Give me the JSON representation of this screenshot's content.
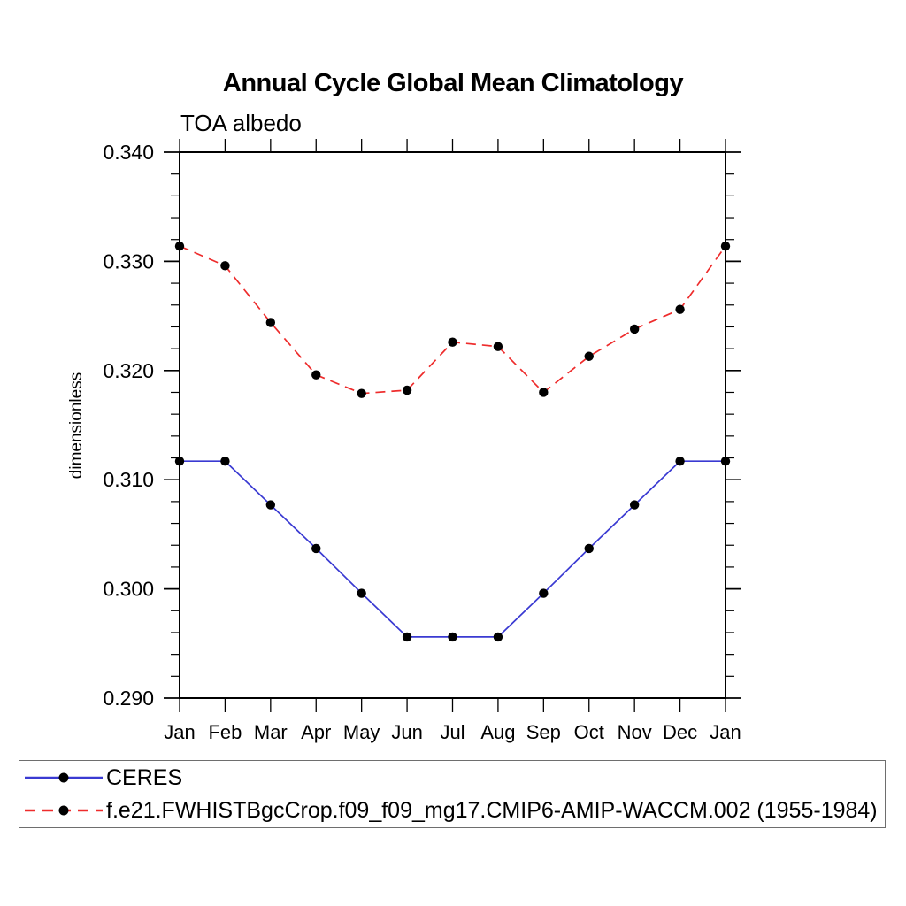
{
  "chart": {
    "title": "Annual Cycle Global Mean Climatology",
    "subtitle": "TOA albedo",
    "ylabel": "dimensionless"
  },
  "chart_data": {
    "type": "line",
    "title": "Annual Cycle Global Mean Climatology",
    "subtitle": "TOA albedo",
    "xlabel": "",
    "ylabel": "dimensionless",
    "x_tick_labels": [
      "Jan",
      "Feb",
      "Mar",
      "Apr",
      "May",
      "Jun",
      "Jul",
      "Aug",
      "Sep",
      "Oct",
      "Nov",
      "Dec",
      "Jan"
    ],
    "ylim": [
      0.29,
      0.34
    ],
    "y_major_step": 0.01,
    "y_minor_step": 0.002,
    "y_tick_decimals": 3,
    "grid": false,
    "frame": "box-with-outward-ticks",
    "legend_position": "bottom-outside",
    "axis_color": "#000000",
    "background_color": "#ffffff",
    "marker_color": "#000000",
    "series": [
      {
        "name": "CERES",
        "color": "#3a3ad2",
        "line_style": "solid",
        "marker": "circle",
        "values": [
          0.3117,
          0.3117,
          0.3077,
          0.3037,
          0.2996,
          0.2956,
          0.2956,
          0.2956,
          0.2996,
          0.3037,
          0.3077,
          0.3117,
          0.3117
        ]
      },
      {
        "name": "f.e21.FWHISTBgcCrop.f09_f09_mg17.CMIP6-AMIP-WACCM.002 (1955-1984)",
        "color": "#ee2c2c",
        "line_style": "dashed",
        "marker": "circle",
        "values": [
          0.3314,
          0.3296,
          0.3244,
          0.3196,
          0.3179,
          0.3182,
          0.3226,
          0.3222,
          0.318,
          0.3213,
          0.3238,
          0.3256,
          0.3314
        ]
      }
    ]
  }
}
